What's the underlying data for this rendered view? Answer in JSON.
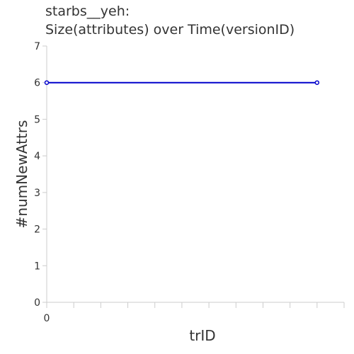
{
  "title_lines": [
    "starbs__yeh:",
    "Size(attributes) over Time(versionID)"
  ],
  "chart_data": {
    "type": "line",
    "title": "starbs__yeh: Size(attributes) over Time(versionID)",
    "xlabel": "trID",
    "ylabel": "#numNewAttrs",
    "x_tick_labels": [
      "0"
    ],
    "y_ticks": [
      0,
      1,
      2,
      3,
      4,
      5,
      6,
      7
    ],
    "ylim": [
      0,
      7
    ],
    "xlim": [
      0,
      11
    ],
    "grid": false,
    "series": [
      {
        "color": "#0000cc",
        "points": [
          {
            "x": 0,
            "y": 6
          },
          {
            "x": 10,
            "y": 6
          }
        ]
      }
    ]
  },
  "colors": {
    "series_line": "#0000cc",
    "axis": "#cccccc",
    "text": "#333333"
  }
}
